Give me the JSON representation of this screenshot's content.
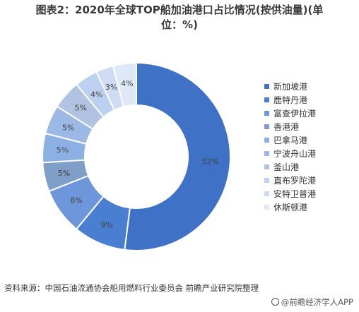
{
  "title_line1": "图表2：2020年全球TOP船加油港口占比情况(按供油量)(单",
  "title_line2": "位：%)",
  "source": "资料来源：中国石油流通协会船用燃料行业委员会 前瞻产业研究院整理",
  "credit": "@前瞻经济学人APP",
  "colors": {
    "slices": [
      "#3f71c6",
      "#4a7ed0",
      "#6d97da",
      "#7f9fc8",
      "#8db0e4",
      "#9cb8e4",
      "#b0c4e2",
      "#bcd0ef",
      "#cedcf3",
      "#dfe8f7"
    ]
  },
  "chart_data": {
    "type": "pie",
    "donut": true,
    "categories": [
      "新加坡港",
      "鹿特丹港",
      "富查伊拉港",
      "香港港",
      "巴拿马港",
      "宁波舟山港",
      "釜山港",
      "直布罗陀港",
      "安特卫普港",
      "休斯顿港"
    ],
    "values": [
      52,
      9,
      8,
      5,
      5,
      5,
      5,
      4,
      3,
      4
    ],
    "data_labels": [
      "52%",
      "9%",
      "8%",
      "5%",
      "5%",
      "5%",
      "5%",
      "4%",
      "3%",
      "4%"
    ],
    "legend_position": "right"
  }
}
